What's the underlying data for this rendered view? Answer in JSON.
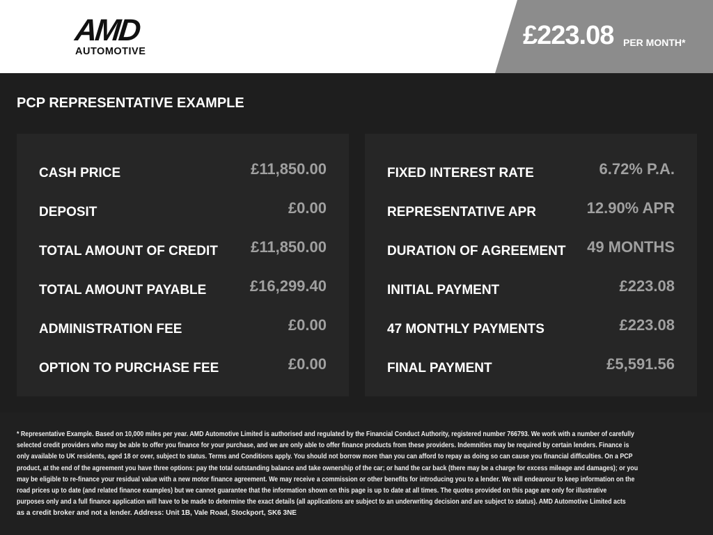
{
  "brand": {
    "name": "AMD",
    "sub": "AUTOMOTIVE"
  },
  "header": {
    "price": "£223.08",
    "per_month": "PER MONTH*",
    "banner_color": "#8c8c8c"
  },
  "title": "PCP REPRESENTATIVE EXAMPLE",
  "left": [
    {
      "label": "CASH PRICE",
      "value": "£11,850.00"
    },
    {
      "label": "DEPOSIT",
      "value": "£0.00"
    },
    {
      "label": "TOTAL AMOUNT OF CREDIT",
      "value": "£11,850.00"
    },
    {
      "label": "TOTAL AMOUNT PAYABLE",
      "value": "£16,299.40"
    },
    {
      "label": "ADMINISTRATION FEE",
      "value": "£0.00"
    },
    {
      "label": "OPTION TO PURCHASE FEE",
      "value": "£0.00"
    }
  ],
  "right": [
    {
      "label": "FIXED INTEREST RATE",
      "value": "6.72% P.A."
    },
    {
      "label": "REPRESENTATIVE APR",
      "value": "12.90% APR"
    },
    {
      "label": "DURATION OF AGREEMENT",
      "value": "49 MONTHS"
    },
    {
      "label": "INITIAL PAYMENT",
      "value": "£223.08"
    },
    {
      "label": "47 MONTHLY PAYMENTS",
      "value": "£223.08"
    },
    {
      "label": "FINAL PAYMENT",
      "value": "£5,591.56"
    }
  ],
  "disclaimer": [
    "* Representative Example. Based on 10,000 miles per year. AMD Automotive Limited is authorised and regulated by the Financial Conduct Authority, registered number 766793. We work with a number of carefully",
    "selected credit providers who may be able to offer you finance for your purchase, and we are only able to offer finance products from these providers. Indemnities may be required by certain lenders. Finance is",
    "only available to UK residents, aged 18 or over, subject to status. Terms and Conditions apply. You should not borrow more than you can afford to repay as doing so can cause you financial difficulties. On a PCP",
    "product, at the end of the agreement you have three options: pay the total outstanding balance and take ownership of the car; or hand the car back (there may be a charge for excess mileage and damages); or you",
    "may be eligible to re-finance your residual value with a new motor finance agreement. We may receive a commission or other benefits for introducing you to a lender. We will endeavour to keep information on the",
    "road prices up to date (and related finance examples) but we cannot guarantee that the information shown on this page is up to date at all times. The quotes provided on this page are only for illustrative",
    "purposes only and a full finance application will have to be made to determine the exact details (all applications are subject to an underwriting decision and are subject to status). AMD Automotive Limited acts",
    "as a credit broker and not a lender. Address: Unit 1B, Vale Road, Stockport, SK6 3NE"
  ]
}
